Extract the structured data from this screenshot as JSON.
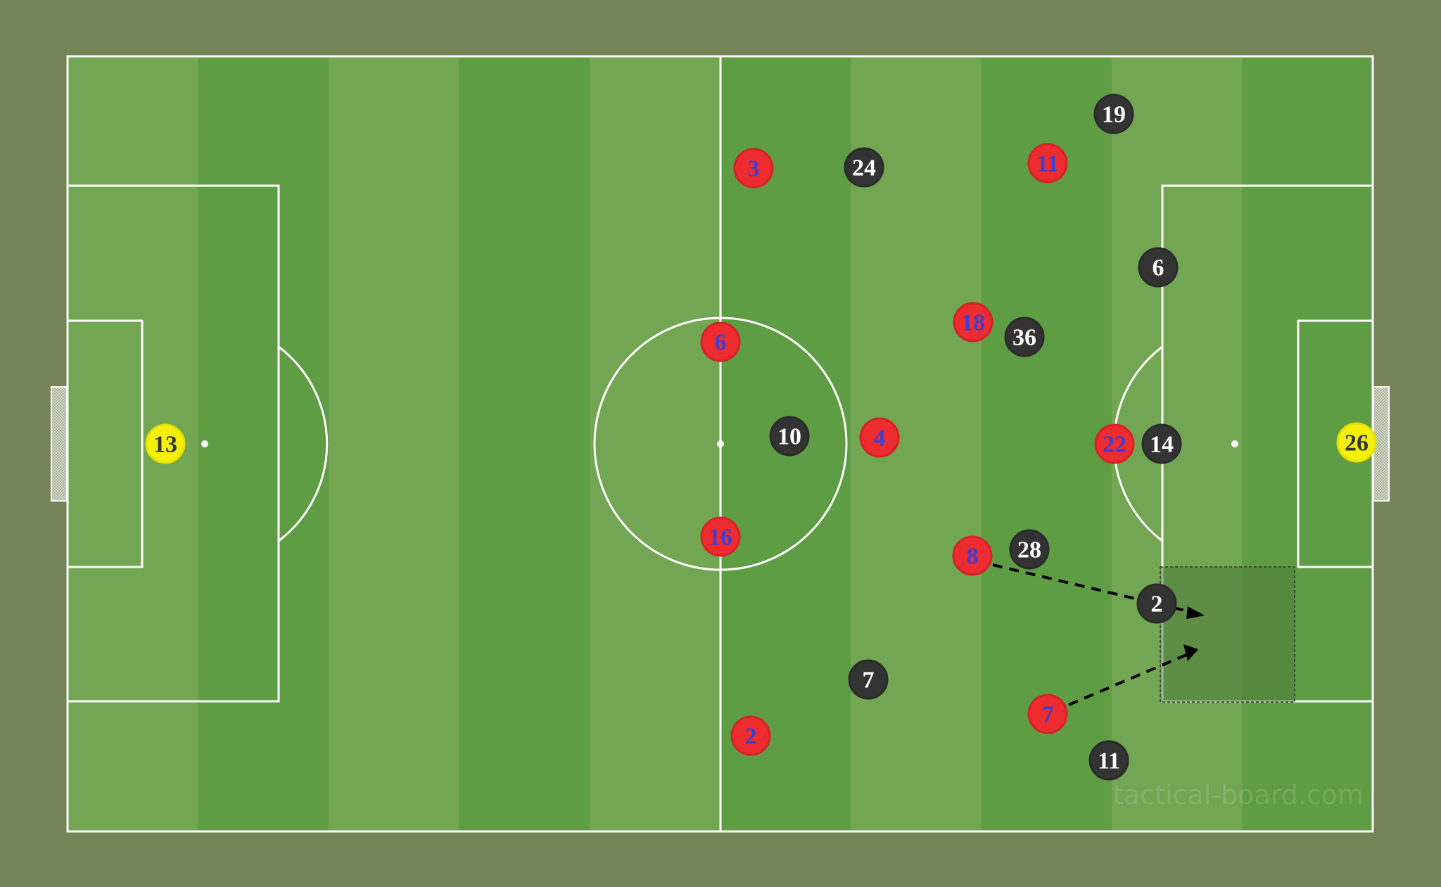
{
  "colors": {
    "background": "#758456",
    "pitch_light": "#72a653",
    "pitch_dark": "#5e9d44",
    "lines": "#ffffff",
    "team_red_fill": "#ee2b2f",
    "team_red_number": "#3e3ed0",
    "team_black_fill": "#333333",
    "team_black_number": "#ffffff",
    "goalkeeper_fill": "#f4f00a",
    "goalkeeper_number": "#333333",
    "zone_fill": "#4f7a3a"
  },
  "red_team": [
    "3",
    "11",
    "18",
    "6",
    "4",
    "22",
    "16",
    "8",
    "7",
    "2"
  ],
  "black_team": [
    "19",
    "24",
    "6",
    "36",
    "10",
    "14",
    "28",
    "2",
    "7",
    "11"
  ],
  "goalkeepers": [
    "13",
    "26"
  ],
  "watermark": "tactical-board.com"
}
